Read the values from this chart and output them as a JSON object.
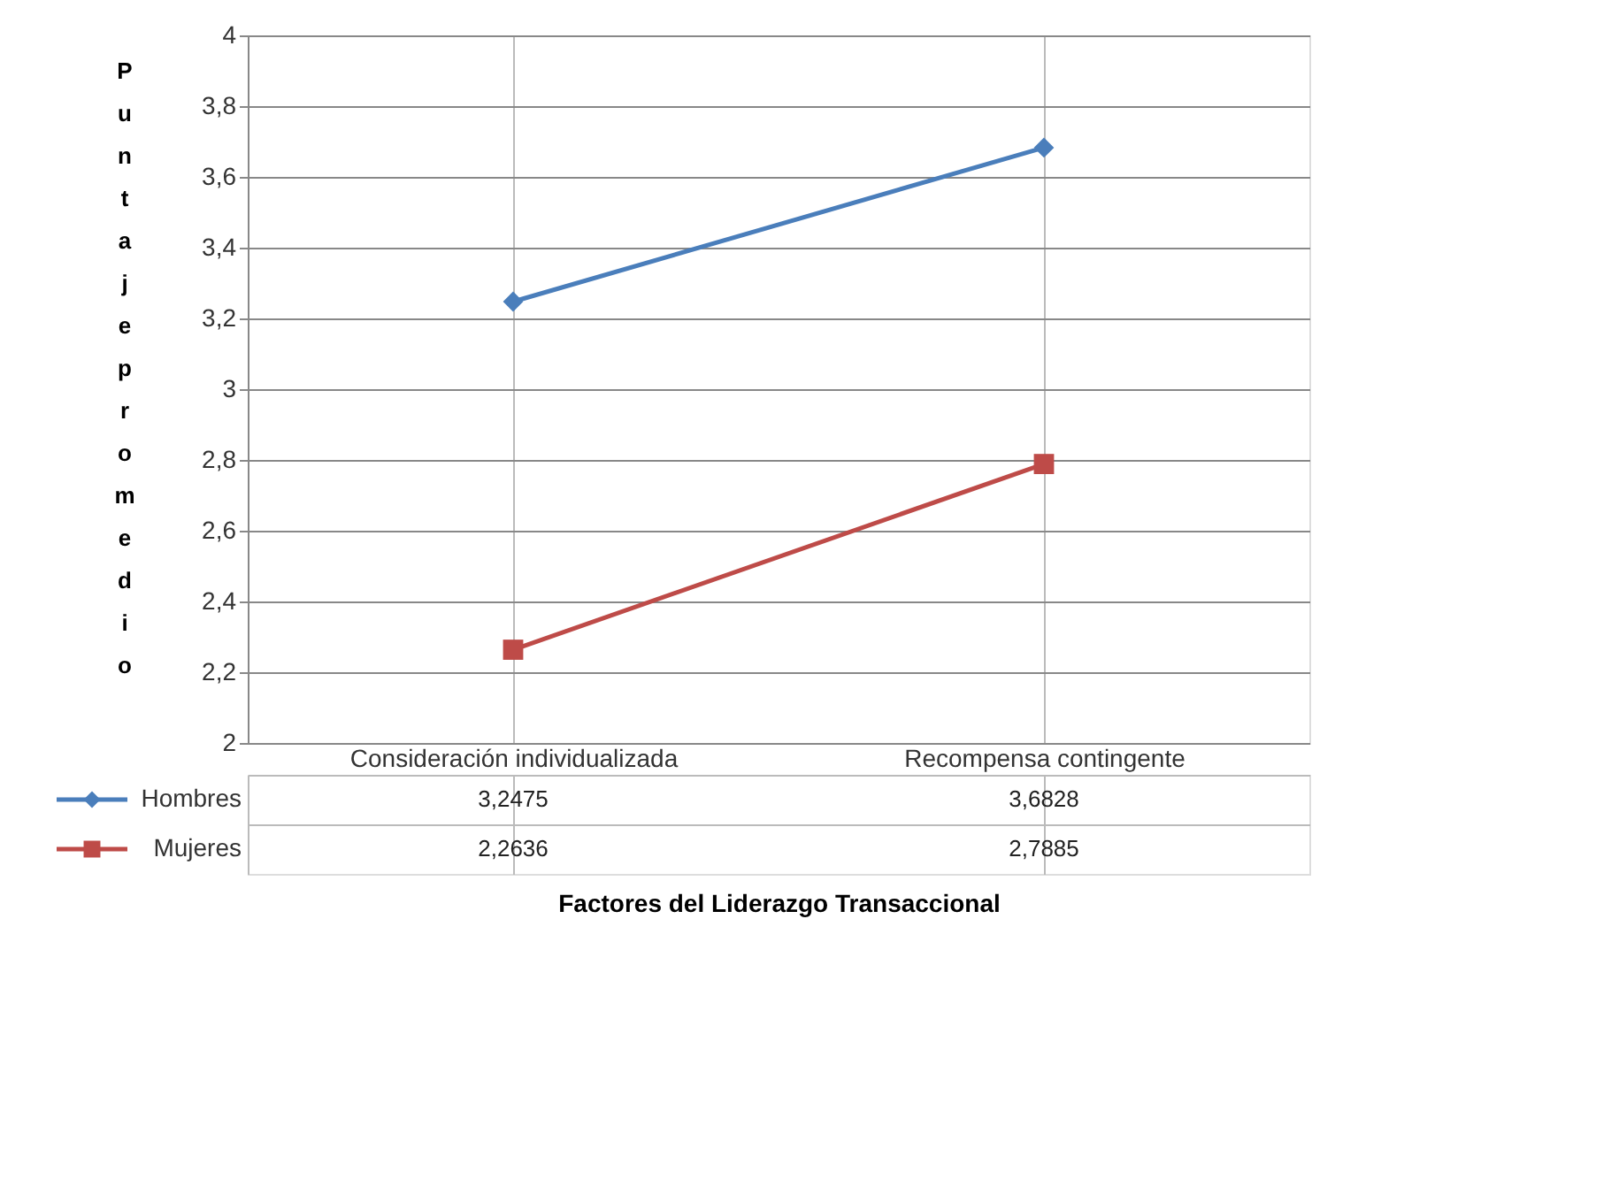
{
  "chart_data": {
    "type": "line",
    "xlabel": "Factores del Liderazgo Transaccional",
    "ylabel": "Puntaje promedio",
    "categories": [
      "Consideración individualizada",
      "Recompensa contingente"
    ],
    "series": [
      {
        "name": "Hombres",
        "color": "#4a7ebb",
        "marker": "diamond",
        "values": [
          3.2475,
          3.6828
        ],
        "value_labels": [
          "3,2475",
          "3,6828"
        ]
      },
      {
        "name": "Mujeres",
        "color": "#be4b48",
        "marker": "square",
        "values": [
          2.2636,
          2.7885
        ],
        "value_labels": [
          "2,2636",
          "2,7885"
        ]
      }
    ],
    "ylim": [
      2,
      4
    ],
    "yticks": [
      {
        "value": 2,
        "label": "2"
      },
      {
        "value": 2.2,
        "label": "2,2"
      },
      {
        "value": 2.4,
        "label": "2,4"
      },
      {
        "value": 2.6,
        "label": "2,6"
      },
      {
        "value": 2.8,
        "label": "2,8"
      },
      {
        "value": 3,
        "label": "3"
      },
      {
        "value": 3.2,
        "label": "3,2"
      },
      {
        "value": 3.4,
        "label": "3,4"
      },
      {
        "value": 3.6,
        "label": "3,6"
      },
      {
        "value": 3.8,
        "label": "3,8"
      },
      {
        "value": 4,
        "label": "4"
      }
    ],
    "grid": true,
    "legend": "bottom",
    "line_style": "solid"
  }
}
